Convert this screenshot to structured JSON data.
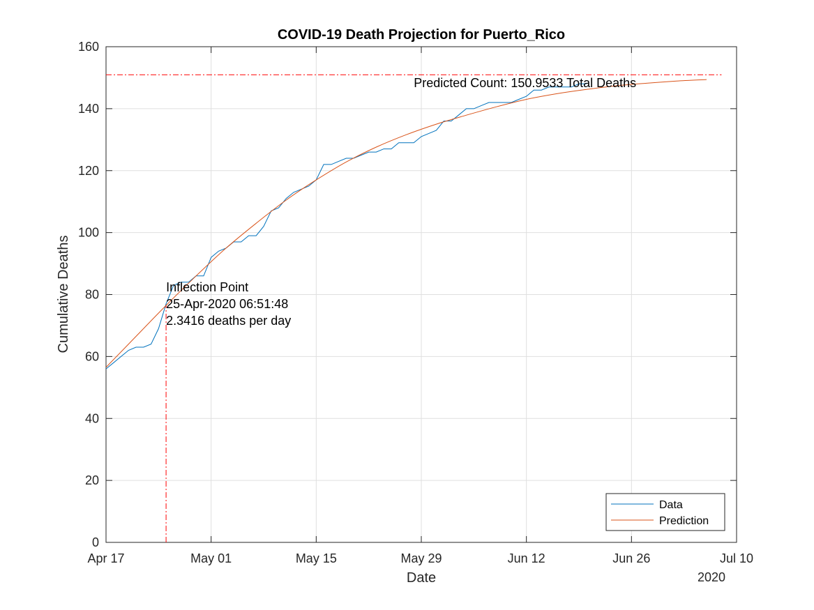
{
  "chart_data": {
    "type": "line",
    "title": "COVID-19 Death Projection for Puerto_Rico",
    "xlabel": "Date",
    "ylabel": "Cumulative Deaths",
    "x_axis_year": "2020",
    "x_ticks": [
      "Apr 17",
      "May 01",
      "May 15",
      "May 29",
      "Jun 12",
      "Jun 26",
      "Jul 10"
    ],
    "x_tick_dates": [
      "2020-04-17",
      "2020-05-01",
      "2020-05-15",
      "2020-05-29",
      "2020-06-12",
      "2020-06-26",
      "2020-07-10"
    ],
    "xlim": [
      "2020-04-17",
      "2020-07-10"
    ],
    "ylim": [
      0,
      160
    ],
    "y_ticks": [
      0,
      20,
      40,
      60,
      80,
      100,
      120,
      140,
      160
    ],
    "grid": true,
    "legend_location": "bottom-right",
    "series": [
      {
        "name": "Data",
        "color": "#0072BD",
        "start_date": "2020-04-17",
        "values": [
          56,
          58,
          60,
          62,
          63,
          63,
          64,
          69,
          77,
          83,
          84,
          84,
          86,
          86,
          92,
          94,
          95,
          97,
          97,
          99,
          99,
          102,
          107,
          108,
          111,
          113,
          114,
          115,
          117,
          122,
          122,
          123,
          124,
          124,
          125,
          126,
          126,
          127,
          127,
          129,
          129,
          129,
          131,
          132,
          133,
          136,
          136,
          138,
          140,
          140,
          141,
          142,
          142,
          142,
          142,
          143,
          144,
          146,
          146,
          147,
          147,
          147,
          147,
          148,
          148
        ]
      },
      {
        "name": "Prediction",
        "color": "#D95319",
        "x_dates": [
          "2020-04-17",
          "2020-04-21",
          "2020-04-25",
          "2020-04-29",
          "2020-05-03",
          "2020-05-07",
          "2020-05-11",
          "2020-05-15",
          "2020-05-19",
          "2020-05-23",
          "2020-05-27",
          "2020-05-31",
          "2020-06-04",
          "2020-06-08",
          "2020-06-12",
          "2020-06-16",
          "2020-06-20",
          "2020-06-24",
          "2020-06-28",
          "2020-07-02",
          "2020-07-06"
        ],
        "values": [
          56.5,
          66.5,
          76.5,
          86,
          95,
          103,
          110.5,
          117,
          122.8,
          127.6,
          131.6,
          135,
          137.9,
          140.6,
          143,
          144.8,
          146.2,
          147.4,
          148.2,
          148.9,
          149.4
        ]
      }
    ],
    "reference_lines": [
      {
        "orientation": "horizontal",
        "y": 150.9533,
        "color": "#FF0000",
        "style": "dash-dot"
      },
      {
        "orientation": "vertical",
        "x": "2020-04-25",
        "y_top": 77,
        "color": "#FF0000",
        "style": "dash-dot"
      }
    ],
    "annotations": {
      "predicted_count": "Predicted Count: 150.9533 Total Deaths",
      "inflection_line1": "Inflection Point",
      "inflection_line2": "25-Apr-2020 06:51:48",
      "inflection_line3": "2.3416 deaths per day"
    },
    "annotation_anchors": {
      "predicted_count": {
        "x": "2020-05-28",
        "y": 147
      },
      "inflection": {
        "x": "2020-04-25",
        "y": 81
      }
    },
    "legend": [
      "Data",
      "Prediction"
    ]
  }
}
